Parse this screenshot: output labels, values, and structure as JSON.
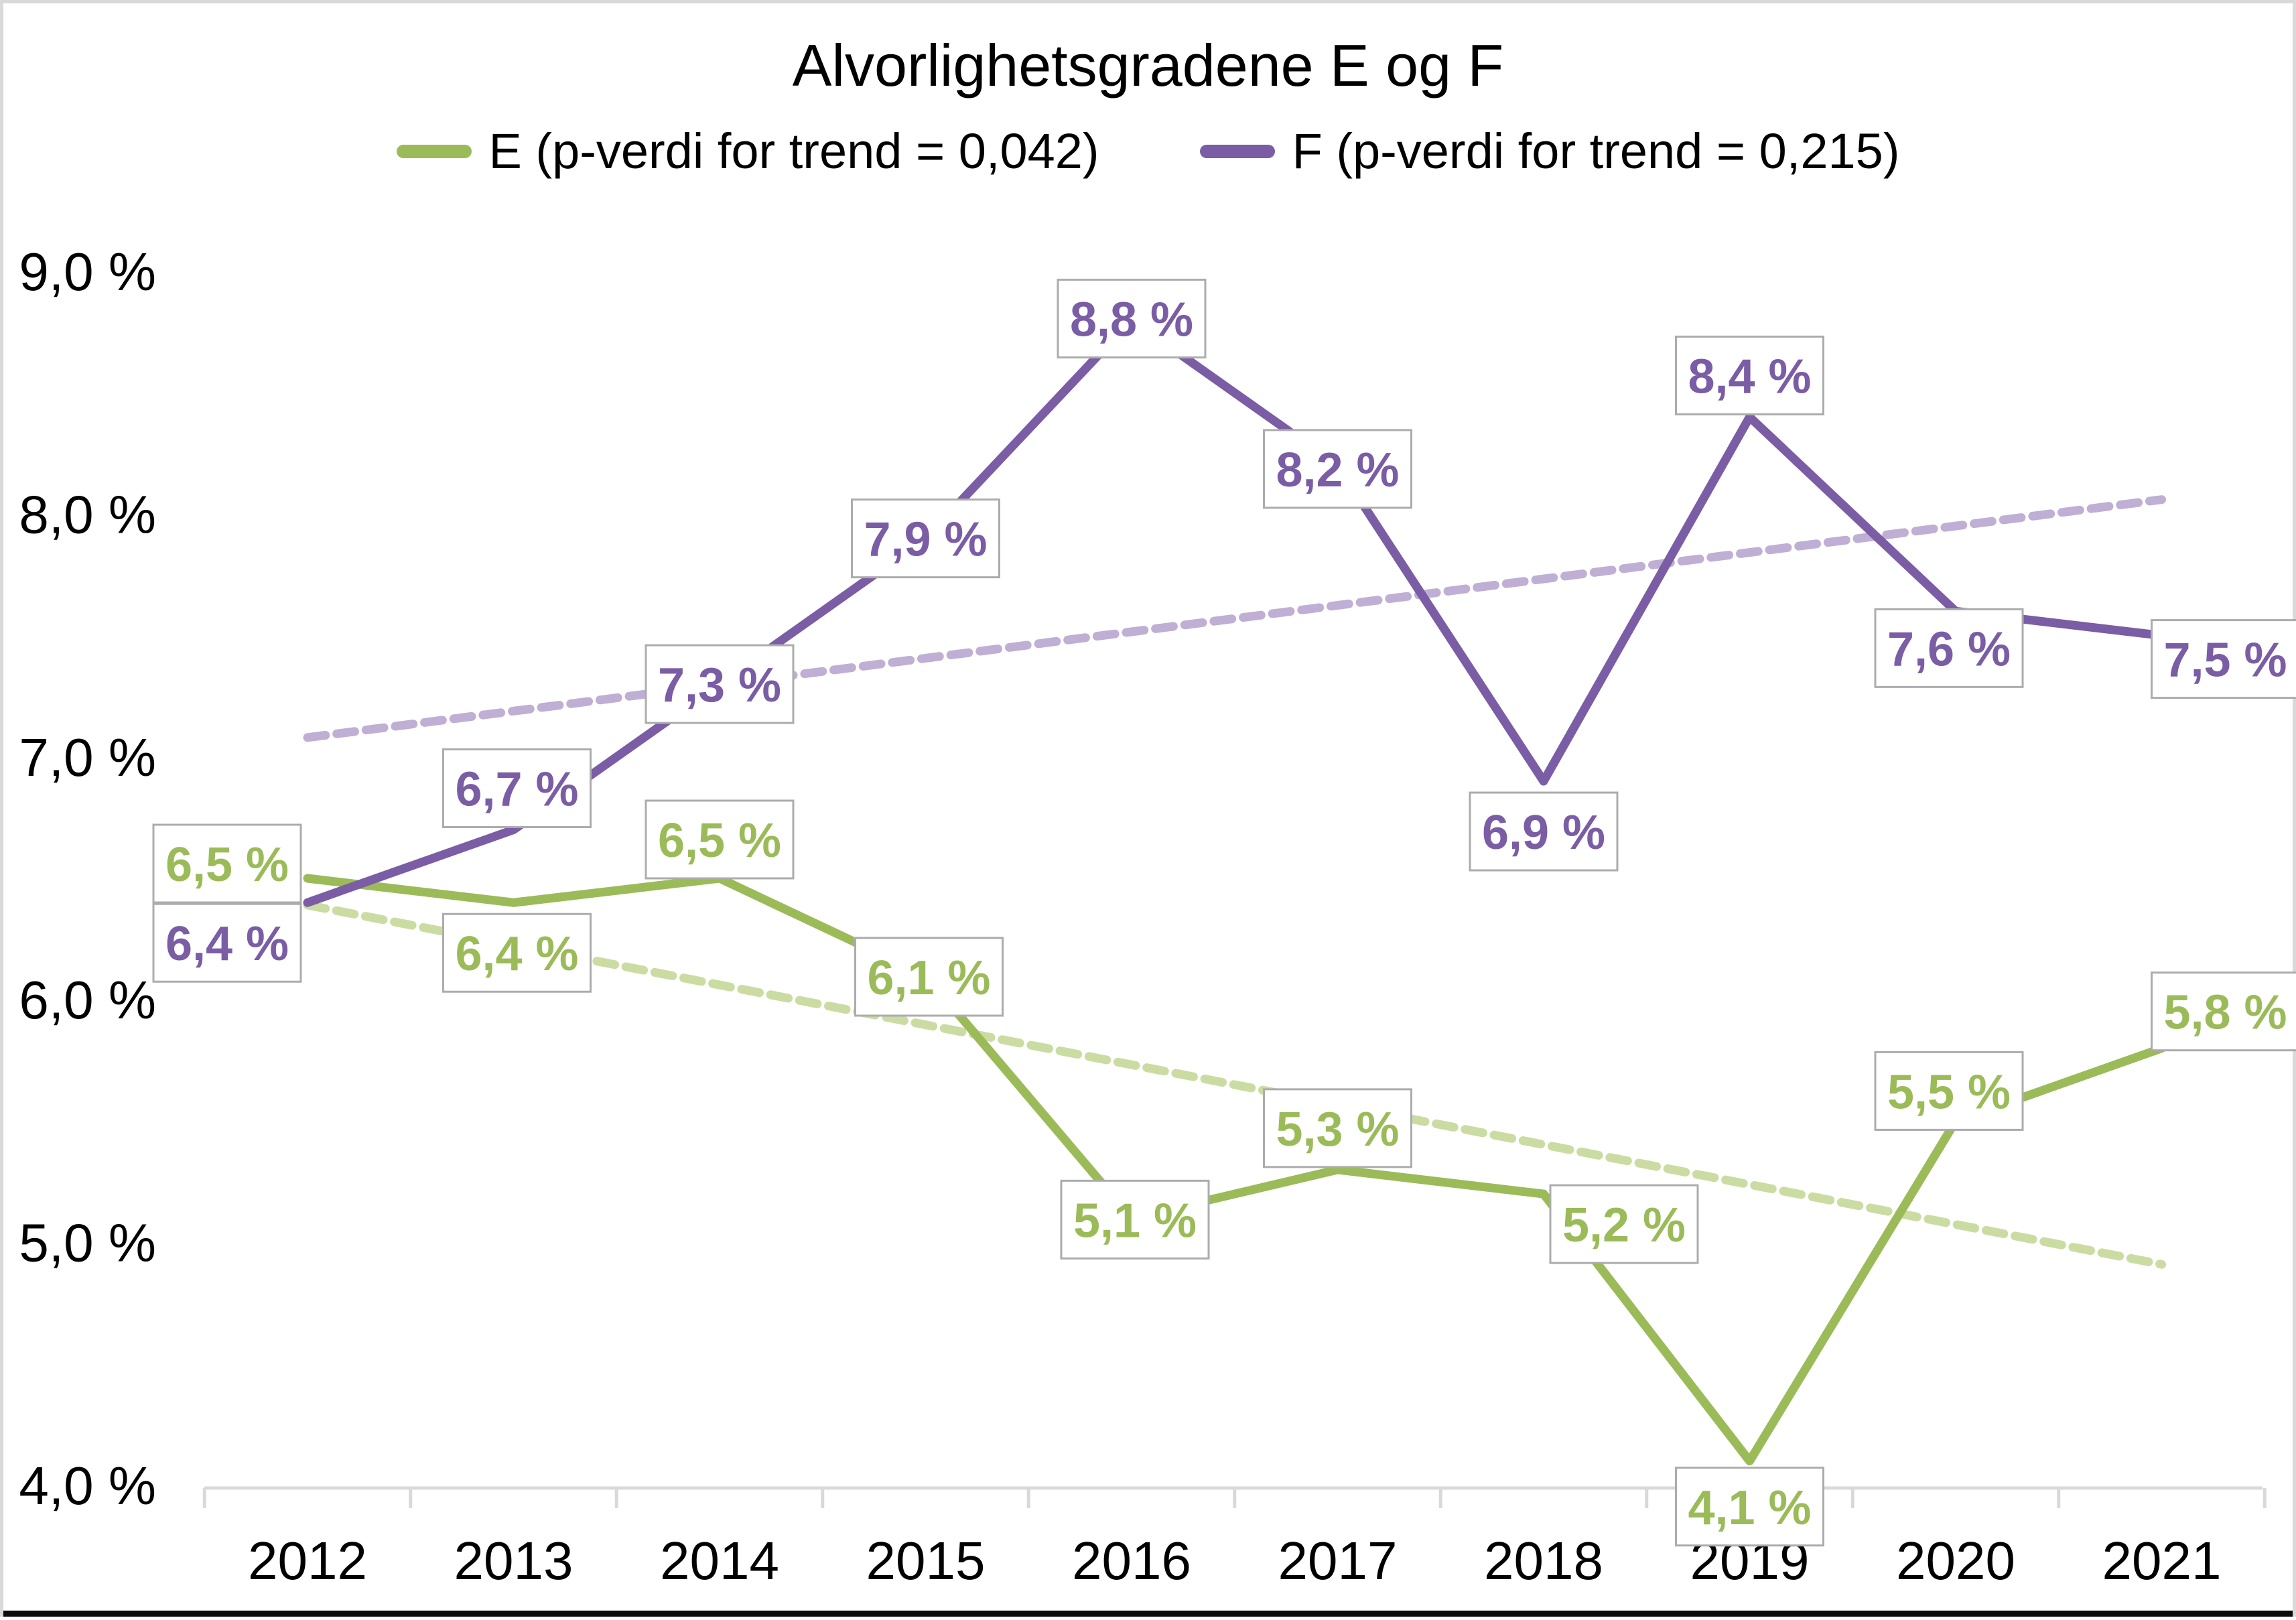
{
  "window": {
    "frame_color": "#d9d9d9",
    "bottom_edge_color": "#0b0b0b",
    "background_color": "#ffffff"
  },
  "chart_data": {
    "type": "line",
    "title": "Alvorlighetsgradene E og F",
    "categories": [
      "2012",
      "2013",
      "2014",
      "2015",
      "2016",
      "2017",
      "2018",
      "2019",
      "2020",
      "2021"
    ],
    "series": [
      {
        "name": "E (p-verdi for trend = 0,042)",
        "color": "#9bbb59",
        "trend_color": "#cbdca2",
        "values": [
          6.5,
          6.4,
          6.5,
          6.1,
          5.1,
          5.3,
          5.2,
          4.1,
          5.5,
          5.8
        ],
        "labels": [
          "6,5 %",
          "6,4 %",
          "6,5 %",
          "6,1 %",
          "5,1 %",
          "5,3 %",
          "5,2 %",
          "4,1 %",
          "5,5 %",
          "5,8 %"
        ],
        "label_offsets": [
          [
            -120,
            -22
          ],
          [
            5,
            75
          ],
          [
            0,
            -58
          ],
          [
            5,
            2
          ],
          [
            5,
            2
          ],
          [
            0,
            -62
          ],
          [
            120,
            45
          ],
          [
            0,
            68
          ],
          [
            -10,
            -45
          ],
          [
            95,
            -55
          ]
        ],
        "trendline": {
          "style": "dashed",
          "start_value": 6.39,
          "end_value": 4.91
        }
      },
      {
        "name": "F (p-verdi for trend = 0,215)",
        "color": "#7a5da4",
        "trend_color": "#bfafd4",
        "values": [
          6.4,
          6.7,
          7.3,
          7.9,
          8.8,
          8.2,
          6.9,
          8.4,
          7.6,
          7.5
        ],
        "labels": [
          "6,4 %",
          "6,7 %",
          "7,3 %",
          "7,9 %",
          "8,8 %",
          "8,2 %",
          "6,9 %",
          "8,4 %",
          "7,6 %",
          "7,5 %"
        ],
        "label_offsets": [
          [
            -120,
            60
          ],
          [
            5,
            -62
          ],
          [
            0,
            0
          ],
          [
            0,
            0
          ],
          [
            0,
            -2
          ],
          [
            0,
            5
          ],
          [
            0,
            75
          ],
          [
            0,
            -62
          ],
          [
            -10,
            55
          ],
          [
            95,
            35
          ]
        ],
        "trendline": {
          "style": "dashed",
          "start_value": 7.08,
          "end_value": 8.06
        }
      }
    ],
    "y_axis": {
      "min": 4.0,
      "max": 9.0,
      "step": 1.0,
      "tick_values": [
        9,
        8,
        7,
        6,
        5,
        4
      ],
      "tick_labels": [
        "9,0 %",
        "8,0 %",
        "7,0 %",
        "6,0 %",
        "5,0 %",
        "4,0 %"
      ]
    },
    "x_axis": {
      "line_color": "#d9d9d9",
      "tick_marks": true
    },
    "label_box": {
      "fill": "#ffffff",
      "border_color": "#acacac",
      "text_bold": true
    },
    "legend_position": "top",
    "grid": false
  }
}
